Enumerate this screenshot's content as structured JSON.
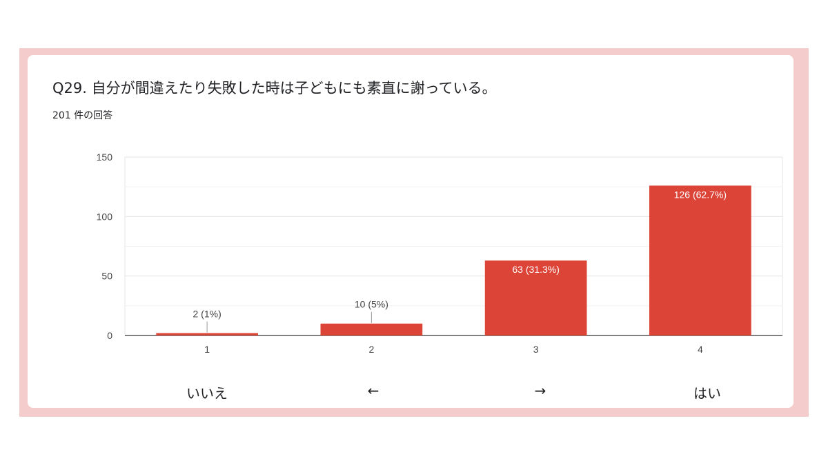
{
  "question": {
    "title": "Q29. 自分が間違えたり失敗した時は子どもにも素直に謝っている。",
    "response_count": "201 件の回答"
  },
  "chart_data": {
    "type": "bar",
    "categories": [
      "1",
      "2",
      "3",
      "4"
    ],
    "values": [
      2,
      10,
      63,
      126
    ],
    "data_labels": [
      "2 (1%)",
      "10 (5%)",
      "63 (31.3%)",
      "126 (62.7%)"
    ],
    "yticks": [
      0,
      50,
      100,
      150
    ],
    "ylim": [
      0,
      150
    ],
    "grid": true,
    "bar_color": "#dc4437",
    "xlabel": "",
    "ylabel": ""
  },
  "scale_labels": [
    "いいえ",
    "←",
    "→",
    "はい"
  ]
}
